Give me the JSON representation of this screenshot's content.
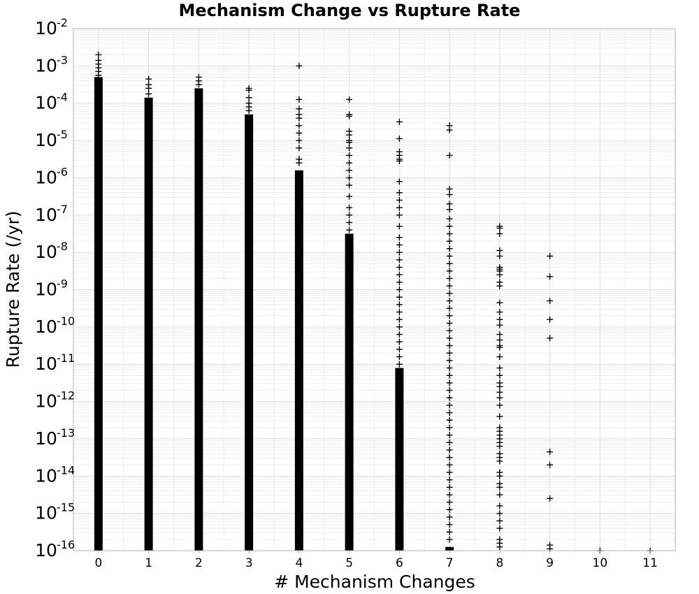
{
  "chart_data": {
    "type": "scatter",
    "title": "Mechanism Change vs Rupture Rate",
    "xlabel": "# Mechanism Changes",
    "ylabel": "Rupture Rate (/yr)",
    "x_ticks": [
      0,
      1,
      2,
      3,
      4,
      5,
      6,
      7,
      8,
      9,
      10,
      11
    ],
    "y_scale": "log",
    "y_tick_base": "10",
    "y_tick_exponents": [
      "-2",
      "-3",
      "-4",
      "-5",
      "-6",
      "-7",
      "-8",
      "-9",
      "-10",
      "-11",
      "-12",
      "-13",
      "-14",
      "-15",
      "-16"
    ],
    "xlim": [
      -0.5,
      11.5
    ],
    "ylim_log10": [
      -16,
      -2
    ],
    "grid": true,
    "marker": "plus",
    "marker_color": "#000000",
    "dense_ranges_log10": [
      {
        "x": 0,
        "from": -16,
        "to": -3.3
      },
      {
        "x": 1,
        "from": -16,
        "to": -3.85
      },
      {
        "x": 2,
        "from": -16,
        "to": -3.6
      },
      {
        "x": 3,
        "from": -16,
        "to": -4.3
      },
      {
        "x": 4,
        "from": -16,
        "to": -5.8
      },
      {
        "x": 5,
        "from": -16,
        "to": -7.5
      },
      {
        "x": 6,
        "from": -16,
        "to": -11.1
      },
      {
        "x": 7,
        "from": -16,
        "to": -15.9
      }
    ],
    "points_log10": [
      {
        "x": 0,
        "y": [
          -2.7,
          -2.85,
          -2.95,
          -3.05,
          -3.15,
          -3.25
        ]
      },
      {
        "x": 1,
        "y": [
          -3.35,
          -3.5,
          -3.6,
          -3.75
        ]
      },
      {
        "x": 2,
        "y": [
          -3.3,
          -3.4,
          -3.5,
          -3.7,
          -3.8,
          -3.9
        ]
      },
      {
        "x": 3,
        "y": [
          -3.6,
          -3.65,
          -3.85,
          -4.0,
          -4.1,
          -4.2
        ]
      },
      {
        "x": 4,
        "y": [
          -3.0,
          -3.9,
          -4.15,
          -4.3,
          -4.4,
          -4.6,
          -4.8,
          -5.0,
          -5.2,
          -5.5,
          -5.6
        ]
      },
      {
        "x": 5,
        "y": [
          -3.9,
          -4.3,
          -4.35,
          -4.75,
          -4.85,
          -5.0,
          -5.05,
          -5.2,
          -5.4,
          -5.6,
          -5.8,
          -6.0,
          -6.2,
          -6.5,
          -6.8,
          -7.0,
          -7.2,
          -7.4
        ]
      },
      {
        "x": 6,
        "y": [
          -4.5,
          -4.95,
          -5.3,
          -5.4,
          -5.5,
          -5.55,
          -6.1,
          -6.4,
          -6.6,
          -6.8,
          -7.0,
          -7.3,
          -7.6,
          -7.8,
          -8.0,
          -8.2,
          -8.4,
          -8.6,
          -8.8,
          -9.0,
          -9.2,
          -9.4,
          -9.6,
          -9.8,
          -10.0,
          -10.2,
          -10.4,
          -10.6,
          -10.8,
          -11.0
        ]
      },
      {
        "x": 7,
        "y": [
          -4.6,
          -4.72,
          -5.4,
          -6.3,
          -6.45,
          -6.7,
          -6.85,
          -7.1,
          -7.3,
          -7.5,
          -7.7,
          -7.9,
          -8.1,
          -8.3,
          -8.5,
          -8.7,
          -8.9,
          -9.1,
          -9.3,
          -9.5,
          -9.7,
          -9.9,
          -10.1,
          -10.3,
          -10.5,
          -10.7,
          -10.9,
          -11.1,
          -11.3,
          -11.5,
          -11.7,
          -11.9,
          -12.1,
          -12.3,
          -12.5,
          -12.7,
          -12.9,
          -13.1,
          -13.3,
          -13.5,
          -13.7,
          -13.9,
          -14.1,
          -14.3,
          -14.5,
          -14.7,
          -14.9,
          -15.1,
          -15.3,
          -15.5,
          -15.7
        ]
      },
      {
        "x": 8,
        "y": [
          -7.3,
          -7.35,
          -7.5,
          -7.95,
          -8.1,
          -8.4,
          -8.45,
          -8.5,
          -8.6,
          -8.8,
          -8.9,
          -9.35,
          -9.6,
          -9.8,
          -9.95,
          -10.2,
          -10.35,
          -10.5,
          -10.55,
          -10.8,
          -11.1,
          -11.3,
          -11.5,
          -11.6,
          -11.75,
          -11.9,
          -12.1,
          -12.4,
          -12.7,
          -12.8,
          -12.9,
          -13.0,
          -13.1,
          -13.2,
          -13.4,
          -13.5,
          -13.6,
          -13.9,
          -14.0,
          -14.2,
          -14.3,
          -14.5,
          -14.8,
          -15.0,
          -15.2,
          -15.4,
          -15.7,
          -15.8,
          -15.9
        ]
      },
      {
        "x": 9,
        "y": [
          -8.1,
          -8.65,
          -9.3,
          -9.8,
          -10.3,
          -13.35,
          -13.7,
          -14.6,
          -15.85,
          -15.95
        ]
      },
      {
        "x": 10,
        "y": [
          -16.0
        ]
      },
      {
        "x": 11,
        "y": [
          -16.0
        ]
      }
    ]
  }
}
